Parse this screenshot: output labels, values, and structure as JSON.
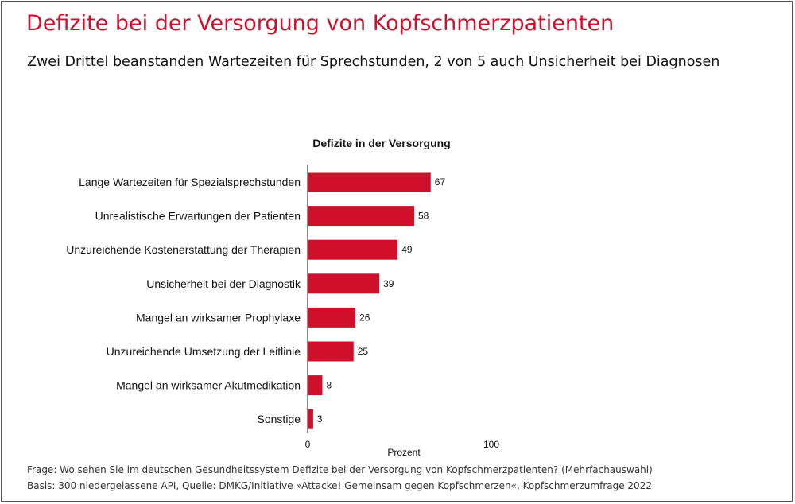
{
  "header": {
    "title": "Defizite bei der Versorgung von Kopfschmerzpatienten",
    "subtitle": "Zwei Drittel beanstanden Wartezeiten für Sprechstunden, 2 von 5 auch Unsicherheit bei Diagnosen"
  },
  "chart_data": {
    "type": "bar",
    "orientation": "horizontal",
    "title": "Defizite in der Versorgung",
    "xlabel": "Prozent",
    "ylabel": "",
    "xlim": [
      0,
      100
    ],
    "x_ticks": [
      0,
      100
    ],
    "categories": [
      "Lange Wartezeiten für Spezialsprechstunden",
      "Unrealistische Erwartungen der Patienten",
      "Unzureichende Kostenerstattung der Therapien",
      "Unsicherheit bei der Diagnostik",
      "Mangel an wirksamer Prophylaxe",
      "Unzureichende Umsetzung der Leitlinie",
      "Mangel an wirksamer Akutmedikation",
      "Sonstige"
    ],
    "values": [
      67,
      58,
      49,
      39,
      26,
      25,
      8,
      3
    ],
    "bar_color": "#d0102b",
    "grid": false,
    "legend": "none"
  },
  "footnotes": {
    "question": "Frage: Wo sehen Sie im deutschen Gesundheitssystem Defizite bei der Versorgung von Kopfschmerzpatienten? (Mehrfachauswahl)",
    "basis": "Basis: 300 niedergelassene API, Quelle: DMKG/Initiative »Attacke! Gemeinsam gegen Kopfschmerzen«, Kopfschmerzumfrage 2022"
  },
  "colors": {
    "accent": "#d0102b",
    "text": "#111111"
  }
}
